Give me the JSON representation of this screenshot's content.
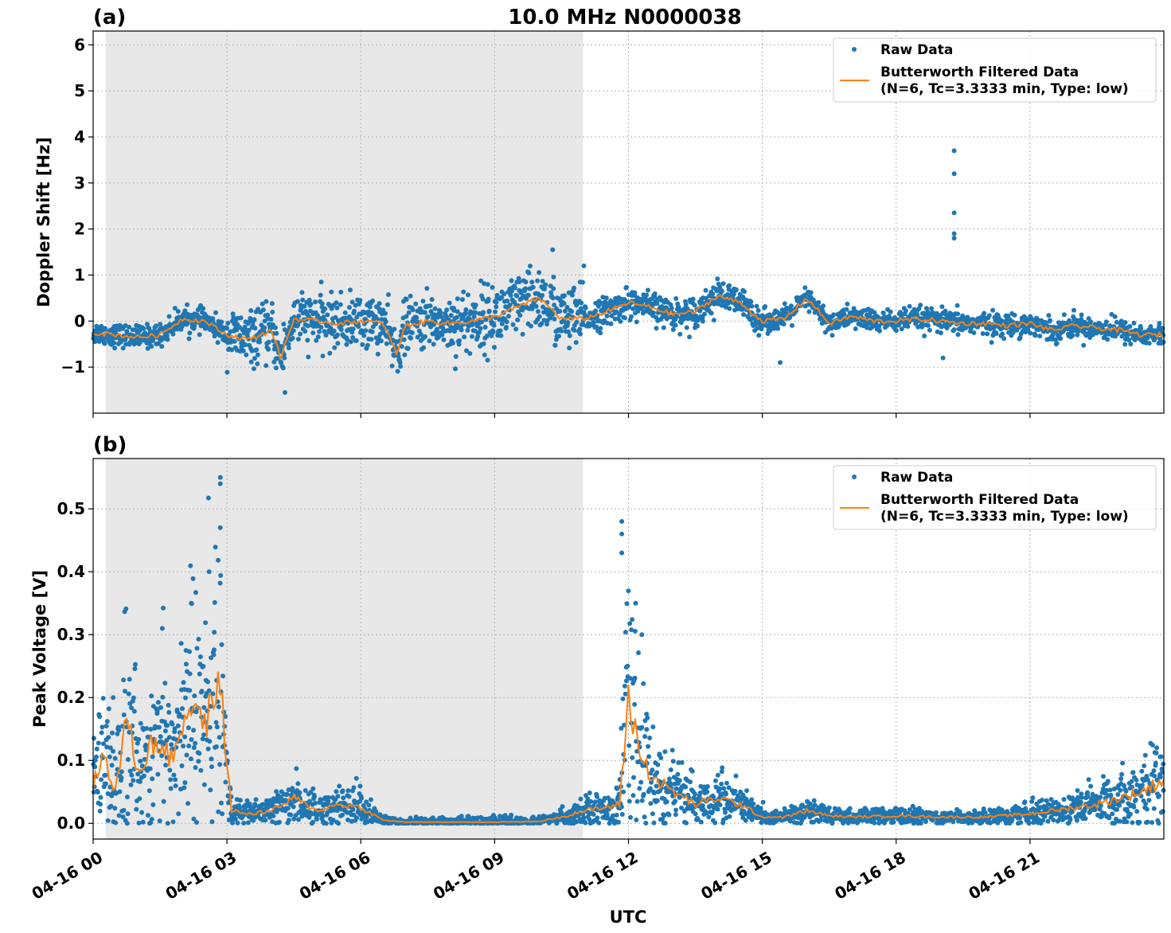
{
  "figure": {
    "title": "10.0 MHz N0000038",
    "xlabel": "UTC",
    "legend": {
      "raw_label": "Raw Data",
      "filtered_label_line1": "Butterworth Filtered Data",
      "filtered_label_line2": "(N=6, Tc=3.3333 min, Type: low)"
    }
  },
  "chart_data": [
    {
      "type": "scatter",
      "panel_label": "(a)",
      "title": "10.0 MHz N0000038",
      "xlabel": "",
      "ylabel": "Doppler Shift [Hz]",
      "xlim": [
        0,
        24
      ],
      "ylim": [
        -2.0,
        6.3
      ],
      "yticks": [
        -1,
        0,
        1,
        2,
        3,
        4,
        5,
        6
      ],
      "ytick_labels": [
        "−1",
        "0",
        "1",
        "2",
        "3",
        "4",
        "5",
        "6"
      ],
      "grid": true,
      "legend_position": "top-right",
      "shaded_region": {
        "x_start": 0.28,
        "x_end": 10.98,
        "color": "#e8e8e8"
      },
      "colors": {
        "raw": "#1f77b4",
        "filtered": "#ff7f0e"
      },
      "series": [
        {
          "name": "Raw Data",
          "kind": "points",
          "approx_spread_hz": 0.35
        },
        {
          "name": "Butterworth Filtered Data (N=6, Tc=3.3333 min, Type: low)",
          "kind": "line",
          "x": [
            0,
            0.5,
            1.0,
            1.5,
            2.0,
            2.5,
            3.0,
            3.5,
            4.0,
            4.2,
            4.5,
            5.0,
            5.5,
            6.0,
            6.5,
            6.8,
            7.0,
            7.5,
            8.0,
            8.5,
            9.0,
            9.5,
            10.0,
            10.5,
            11.0,
            11.5,
            12.0,
            12.5,
            13.0,
            13.5,
            14.0,
            14.5,
            15.0,
            15.5,
            16.0,
            16.5,
            17.0,
            17.5,
            18.0,
            18.5,
            19.0,
            19.5,
            20.0,
            20.5,
            21.0,
            21.5,
            22.0,
            22.5,
            23.0,
            23.5,
            24.0
          ],
          "y": [
            -0.25,
            -0.3,
            -0.35,
            -0.3,
            0.05,
            0.0,
            -0.3,
            -0.4,
            -0.2,
            -0.8,
            0.05,
            0.0,
            -0.05,
            0.0,
            -0.05,
            -0.7,
            -0.1,
            0.0,
            -0.05,
            0.0,
            0.1,
            0.3,
            0.5,
            0.05,
            0.05,
            0.2,
            0.4,
            0.3,
            0.15,
            0.2,
            0.55,
            0.4,
            0.0,
            0.05,
            0.5,
            -0.05,
            0.1,
            0.0,
            0.0,
            0.05,
            0.0,
            -0.05,
            -0.05,
            -0.1,
            -0.05,
            -0.2,
            -0.1,
            -0.15,
            -0.2,
            -0.3,
            -0.3
          ]
        }
      ],
      "outliers": [
        {
          "x": 19.3,
          "y": 3.7
        },
        {
          "x": 19.3,
          "y": 3.2
        },
        {
          "x": 19.3,
          "y": 2.35
        },
        {
          "x": 19.3,
          "y": 1.9
        },
        {
          "x": 19.3,
          "y": 1.8
        },
        {
          "x": 4.3,
          "y": -1.55
        },
        {
          "x": 11.0,
          "y": 1.2
        },
        {
          "x": 15.4,
          "y": -0.9
        },
        {
          "x": 19.05,
          "y": -0.8
        },
        {
          "x": 10.3,
          "y": 1.55
        }
      ]
    },
    {
      "type": "scatter",
      "panel_label": "(b)",
      "title": "",
      "xlabel": "UTC",
      "ylabel": "Peak Voltage [V]",
      "xlim": [
        0,
        24
      ],
      "ylim": [
        -0.025,
        0.58
      ],
      "yticks": [
        0.0,
        0.1,
        0.2,
        0.3,
        0.4,
        0.5
      ],
      "ytick_labels": [
        "0.0",
        "0.1",
        "0.2",
        "0.3",
        "0.4",
        "0.5"
      ],
      "xticks": [
        0,
        3,
        6,
        9,
        12,
        15,
        18,
        21
      ],
      "xtick_labels": [
        "04-16 00",
        "04-16 03",
        "04-16 06",
        "04-16 09",
        "04-16 12",
        "04-16 15",
        "04-16 18",
        "04-16 21"
      ],
      "grid": true,
      "legend_position": "top-right",
      "shaded_region": {
        "x_start": 0.28,
        "x_end": 10.98,
        "color": "#e8e8e8"
      },
      "colors": {
        "raw": "#1f77b4",
        "filtered": "#ff7f0e"
      },
      "series": [
        {
          "name": "Raw Data",
          "kind": "points"
        },
        {
          "name": "Butterworth Filtered Data (N=6, Tc=3.3333 min, Type: low)",
          "kind": "line",
          "x": [
            0,
            0.25,
            0.5,
            0.75,
            1.0,
            1.25,
            1.5,
            1.75,
            2.0,
            2.25,
            2.5,
            2.75,
            2.9,
            3.1,
            3.5,
            4.0,
            4.5,
            5.0,
            5.5,
            6.0,
            6.5,
            7.0,
            8.0,
            9.0,
            10.0,
            10.5,
            11.0,
            11.5,
            11.8,
            12.0,
            12.3,
            12.6,
            13.0,
            13.5,
            14.0,
            14.5,
            15.0,
            15.5,
            16.0,
            16.5,
            17.0,
            18.0,
            19.0,
            20.0,
            21.0,
            22.0,
            22.5,
            23.0,
            23.5,
            24.0
          ],
          "y": [
            0.06,
            0.11,
            0.05,
            0.17,
            0.08,
            0.12,
            0.13,
            0.1,
            0.16,
            0.2,
            0.15,
            0.22,
            0.18,
            0.02,
            0.015,
            0.02,
            0.04,
            0.02,
            0.03,
            0.025,
            0.005,
            0.002,
            0.002,
            0.002,
            0.003,
            0.01,
            0.02,
            0.025,
            0.03,
            0.2,
            0.1,
            0.07,
            0.05,
            0.03,
            0.04,
            0.03,
            0.01,
            0.01,
            0.02,
            0.012,
            0.01,
            0.012,
            0.01,
            0.01,
            0.015,
            0.025,
            0.03,
            0.04,
            0.05,
            0.07
          ]
        }
      ],
      "outliers": [
        {
          "x": 2.85,
          "y": 0.55
        },
        {
          "x": 2.85,
          "y": 0.54
        },
        {
          "x": 2.85,
          "y": 0.47
        },
        {
          "x": 2.6,
          "y": 0.4
        },
        {
          "x": 11.85,
          "y": 0.48
        },
        {
          "x": 11.85,
          "y": 0.46
        },
        {
          "x": 11.85,
          "y": 0.43
        },
        {
          "x": 12.3,
          "y": 0.3
        },
        {
          "x": 1.55,
          "y": 0.31
        },
        {
          "x": 2.2,
          "y": 0.35
        },
        {
          "x": 0.45,
          "y": 0.2
        }
      ]
    }
  ]
}
